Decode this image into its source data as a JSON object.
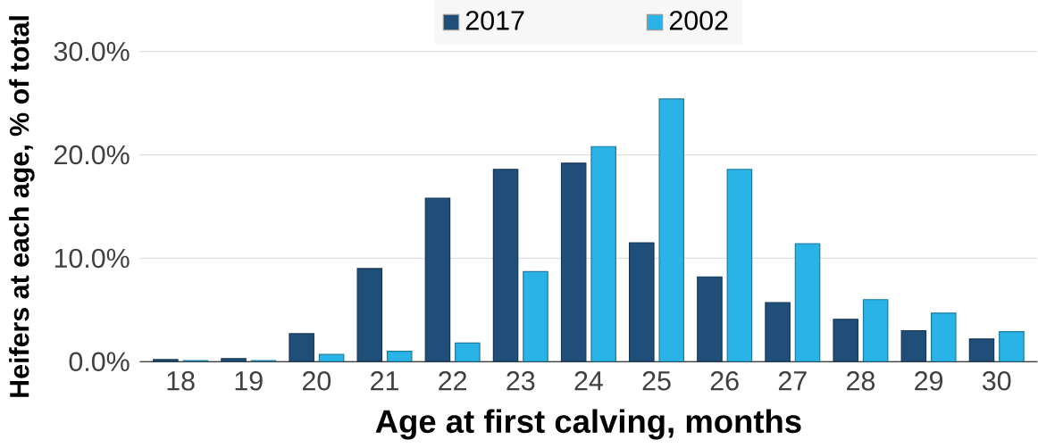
{
  "chart_data": {
    "type": "bar",
    "xlabel": "Age at first calving, months",
    "ylabel": "Heifers at each age, % of total",
    "categories": [
      "18",
      "19",
      "20",
      "21",
      "22",
      "23",
      "24",
      "25",
      "26",
      "27",
      "28",
      "29",
      "30"
    ],
    "series": [
      {
        "name": "2017",
        "color": "#1f4e79",
        "values": [
          0.2,
          0.3,
          2.7,
          9.0,
          15.8,
          18.6,
          19.2,
          11.5,
          8.2,
          5.7,
          4.1,
          3.0,
          2.2
        ]
      },
      {
        "name": "2002",
        "color": "#29b3e6",
        "values": [
          0.1,
          0.1,
          0.7,
          1.0,
          1.8,
          8.7,
          20.8,
          25.4,
          18.6,
          11.4,
          6.0,
          4.7,
          2.9
        ]
      }
    ],
    "ylim": [
      0,
      30
    ],
    "yticks": [
      {
        "value": 0,
        "label": "0.0%"
      },
      {
        "value": 10,
        "label": "10.0%"
      },
      {
        "value": 20,
        "label": "20.0%"
      },
      {
        "value": 30,
        "label": "30.0%"
      }
    ],
    "grid": "y",
    "legend": "top"
  }
}
